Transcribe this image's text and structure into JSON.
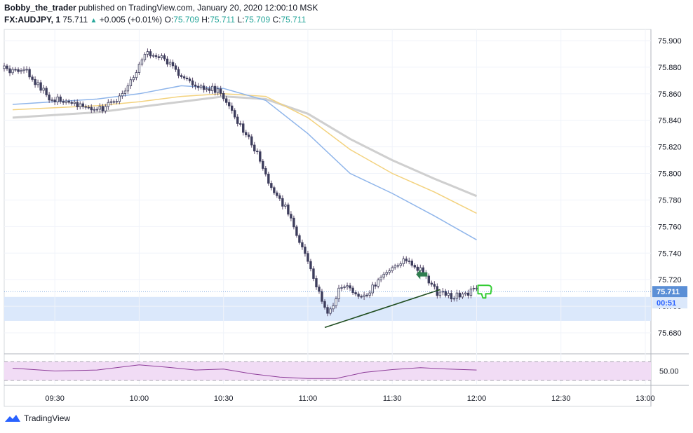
{
  "header": {
    "author": "Bobby_the_trader",
    "published_text": "published on TradingView.com, January 20, 2020 12:00:10 MSK",
    "symbol": "FX:AUDJPY, 1",
    "last": "75.711",
    "change": "+0.005 (+0.01%)",
    "o_label": "O:",
    "o_value": "75.709",
    "h_label": "H:",
    "h_value": "75.711",
    "l_label": "L:",
    "l_value": "75.709",
    "c_label": "C:",
    "c_value": "75.711"
  },
  "footer": {
    "brand": "TradingView",
    "logo_icon": "tradingview-logo-icon"
  },
  "colors": {
    "up": "#26a69a",
    "candle_body": "#3d3d5c",
    "candle_wick": "#5a4a6a",
    "ma_blue": "#8fb5ea",
    "ma_orange": "#f3d27e",
    "ma_gray": "#cfcfcf",
    "rsi": "#8e3d9a",
    "rsi_band": "#f1dcf5",
    "zone": "#dbe8fb",
    "price_tag": "#5b8fd6",
    "arrow": "#2e7d4f",
    "thumb": "#33cc33",
    "trendline": "#1f4d1f"
  },
  "chart_data": {
    "type": "candlestick",
    "y_ticks": [
      "75.900",
      "75.880",
      "75.860",
      "75.840",
      "75.820",
      "75.800",
      "75.780",
      "75.760",
      "75.740",
      "75.720",
      "75.700",
      "75.680"
    ],
    "ylim": [
      75.68,
      75.9
    ],
    "x_ticks": [
      "09:30",
      "10:00",
      "10:30",
      "11:00",
      "11:30",
      "12:00",
      "12:30",
      "13:00"
    ],
    "price_label": "75.711",
    "countdown_label": "00:51",
    "rsi_tick": "50.00",
    "rsi_band": [
      30,
      70
    ],
    "support_zone": [
      75.689,
      75.707
    ],
    "trendline": {
      "from": [
        "11:06",
        75.684
      ],
      "to": [
        "11:47",
        75.7125
      ]
    },
    "ma_fast": [
      [
        "09:15",
        75.852
      ],
      [
        "09:45",
        75.856
      ],
      [
        "10:00",
        75.86
      ],
      [
        "10:15",
        75.866
      ],
      [
        "10:30",
        75.864
      ],
      [
        "10:45",
        75.855
      ],
      [
        "11:00",
        75.83
      ],
      [
        "11:15",
        75.8
      ],
      [
        "11:30",
        75.785
      ],
      [
        "11:45",
        75.768
      ],
      [
        "12:00",
        75.75
      ]
    ],
    "ma_mid": [
      [
        "09:15",
        75.848
      ],
      [
        "09:45",
        75.851
      ],
      [
        "10:00",
        75.854
      ],
      [
        "10:15",
        75.858
      ],
      [
        "10:30",
        75.86
      ],
      [
        "10:45",
        75.858
      ],
      [
        "11:00",
        75.842
      ],
      [
        "11:15",
        75.818
      ],
      [
        "11:30",
        75.8
      ],
      [
        "11:45",
        75.786
      ],
      [
        "12:00",
        75.77
      ]
    ],
    "ma_slow": [
      [
        "09:15",
        75.842
      ],
      [
        "09:45",
        75.846
      ],
      [
        "10:00",
        75.85
      ],
      [
        "10:15",
        75.854
      ],
      [
        "10:30",
        75.858
      ],
      [
        "10:45",
        75.856
      ],
      [
        "11:00",
        75.845
      ],
      [
        "11:15",
        75.826
      ],
      [
        "11:30",
        75.81
      ],
      [
        "11:45",
        75.796
      ],
      [
        "12:00",
        75.783
      ]
    ],
    "rsi": [
      [
        "09:15",
        56
      ],
      [
        "09:30",
        50
      ],
      [
        "09:45",
        52
      ],
      [
        "10:00",
        63
      ],
      [
        "10:10",
        58
      ],
      [
        "10:20",
        52
      ],
      [
        "10:30",
        54
      ],
      [
        "10:40",
        44
      ],
      [
        "10:50",
        37
      ],
      [
        "11:00",
        34
      ],
      [
        "11:10",
        34
      ],
      [
        "11:20",
        47
      ],
      [
        "11:30",
        53
      ],
      [
        "11:40",
        57
      ],
      [
        "11:50",
        54
      ],
      [
        "12:00",
        52
      ]
    ]
  }
}
